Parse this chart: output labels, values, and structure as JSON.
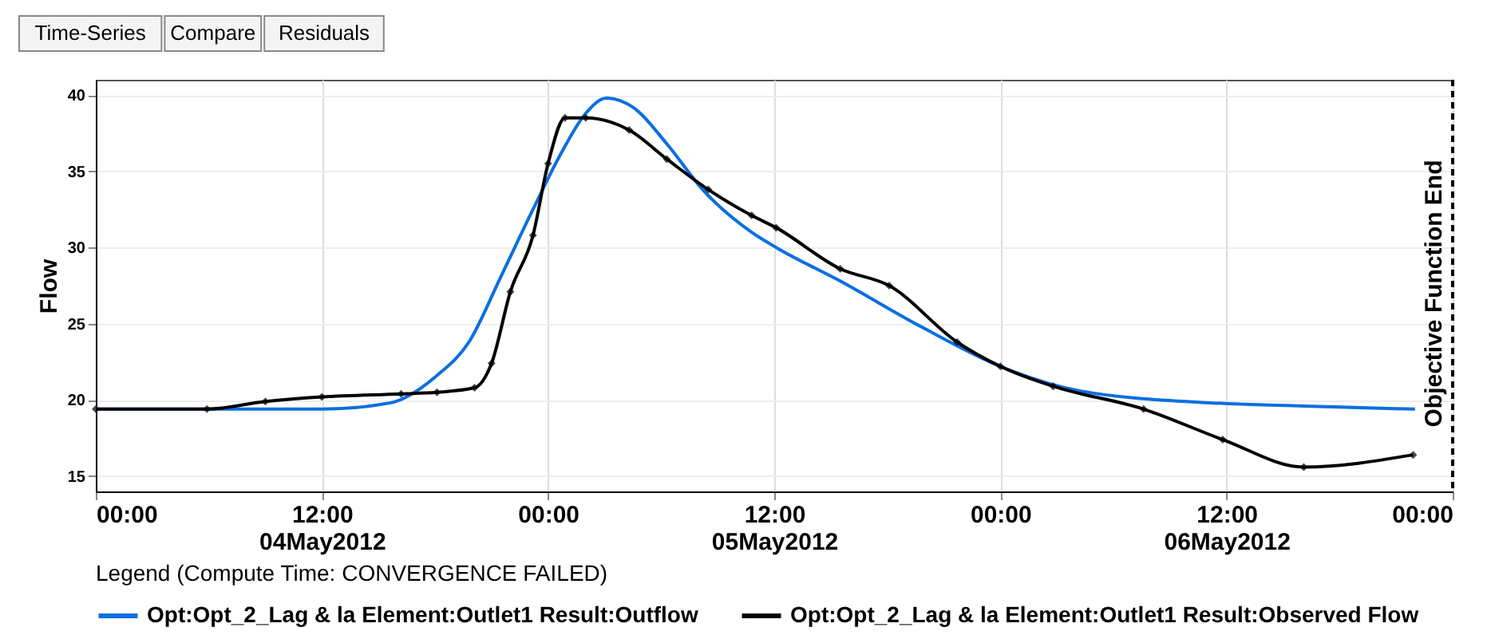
{
  "chart_data": {
    "type": "line",
    "ylabel": "Flow",
    "legend_title": "Legend (Compute Time: CONVERGENCE FAILED)",
    "annotations": [
      "Time-Series",
      "Compare",
      "Residuals"
    ],
    "xlim": [
      "2012-05-04T00:00",
      "2012-05-07T00:00"
    ],
    "ylim": [
      14,
      41
    ],
    "xticks": [
      {
        "value": "2012-05-04T00:00",
        "label": "00:00"
      },
      {
        "value": "2012-05-04T12:00",
        "label": "12:00\n04May2012"
      },
      {
        "value": "2012-05-05T00:00",
        "label": "00:00"
      },
      {
        "value": "2012-05-05T12:00",
        "label": "12:00\n05May2012"
      },
      {
        "value": "2012-05-06T00:00",
        "label": "00:00"
      },
      {
        "value": "2012-05-06T12:00",
        "label": "12:00\n06May2012"
      },
      {
        "value": "2012-05-07T00:00",
        "label": "00:00"
      }
    ],
    "yticks": [
      15,
      20,
      25,
      30,
      35,
      40
    ],
    "grid": true,
    "legend": "bottom",
    "ref_lines": [
      {
        "axis": "x",
        "value": "2012-05-07T00:00",
        "label": "Objective Function End",
        "color": "#000000",
        "line_style": "dashed"
      }
    ],
    "series": [
      {
        "name": "Opt:Opt_2_Lag & la Element:Outlet1 Result:Outflow",
        "color": "#0a6fe0",
        "marker": "none",
        "x": [
          "2012-05-04T00:00",
          "2012-05-04T12:00",
          "2012-05-04T15:36",
          "2012-05-04T18:06",
          "2012-05-04T19:48",
          "2012-05-04T21:30",
          "2012-05-04T23:12",
          "2012-05-05T00:42",
          "2012-05-05T02:00",
          "2012-05-05T03:06",
          "2012-05-05T04:30",
          "2012-05-05T06:18",
          "2012-05-05T08:12",
          "2012-05-05T10:48",
          "2012-05-05T12:06",
          "2012-05-05T15:30",
          "2012-05-05T19:48",
          "2012-05-06T00:00",
          "2012-05-06T04:12",
          "2012-05-06T11:18",
          "2012-05-06T16:06",
          "2012-05-06T22:00"
        ],
        "values": [
          19.4,
          19.4,
          19.8,
          21.6,
          23.8,
          28.1,
          32.5,
          36.2,
          38.8,
          39.8,
          39.2,
          36.8,
          33.8,
          31.0,
          30.0,
          27.8,
          24.8,
          22.2,
          20.6,
          19.8,
          19.6,
          19.4
        ]
      },
      {
        "name": "Opt:Opt_2_Lag & la Element:Outlet1 Result:Observed Flow",
        "color": "#000000",
        "marker": "diamond",
        "x": [
          "2012-05-04T00:00",
          "2012-05-04T05:54",
          "2012-05-04T09:00",
          "2012-05-04T12:00",
          "2012-05-04T16:12",
          "2012-05-04T18:06",
          "2012-05-04T20:06",
          "2012-05-04T21:00",
          "2012-05-04T22:00",
          "2012-05-04T23:12",
          "2012-05-05T00:00",
          "2012-05-05T00:54",
          "2012-05-05T02:00",
          "2012-05-05T04:18",
          "2012-05-05T06:18",
          "2012-05-05T08:30",
          "2012-05-05T10:48",
          "2012-05-05T12:06",
          "2012-05-05T15:30",
          "2012-05-05T18:06",
          "2012-05-05T21:42",
          "2012-05-06T00:00",
          "2012-05-06T02:48",
          "2012-05-06T07:36",
          "2012-05-06T11:48",
          "2012-05-06T16:06",
          "2012-05-06T21:54"
        ],
        "values": [
          19.4,
          19.4,
          19.9,
          20.2,
          20.4,
          20.5,
          20.8,
          22.4,
          27.1,
          30.8,
          35.5,
          38.5,
          38.5,
          37.7,
          35.8,
          33.8,
          32.1,
          31.3,
          28.6,
          27.5,
          23.8,
          22.2,
          20.9,
          19.4,
          17.4,
          15.6,
          16.4
        ]
      }
    ]
  }
}
